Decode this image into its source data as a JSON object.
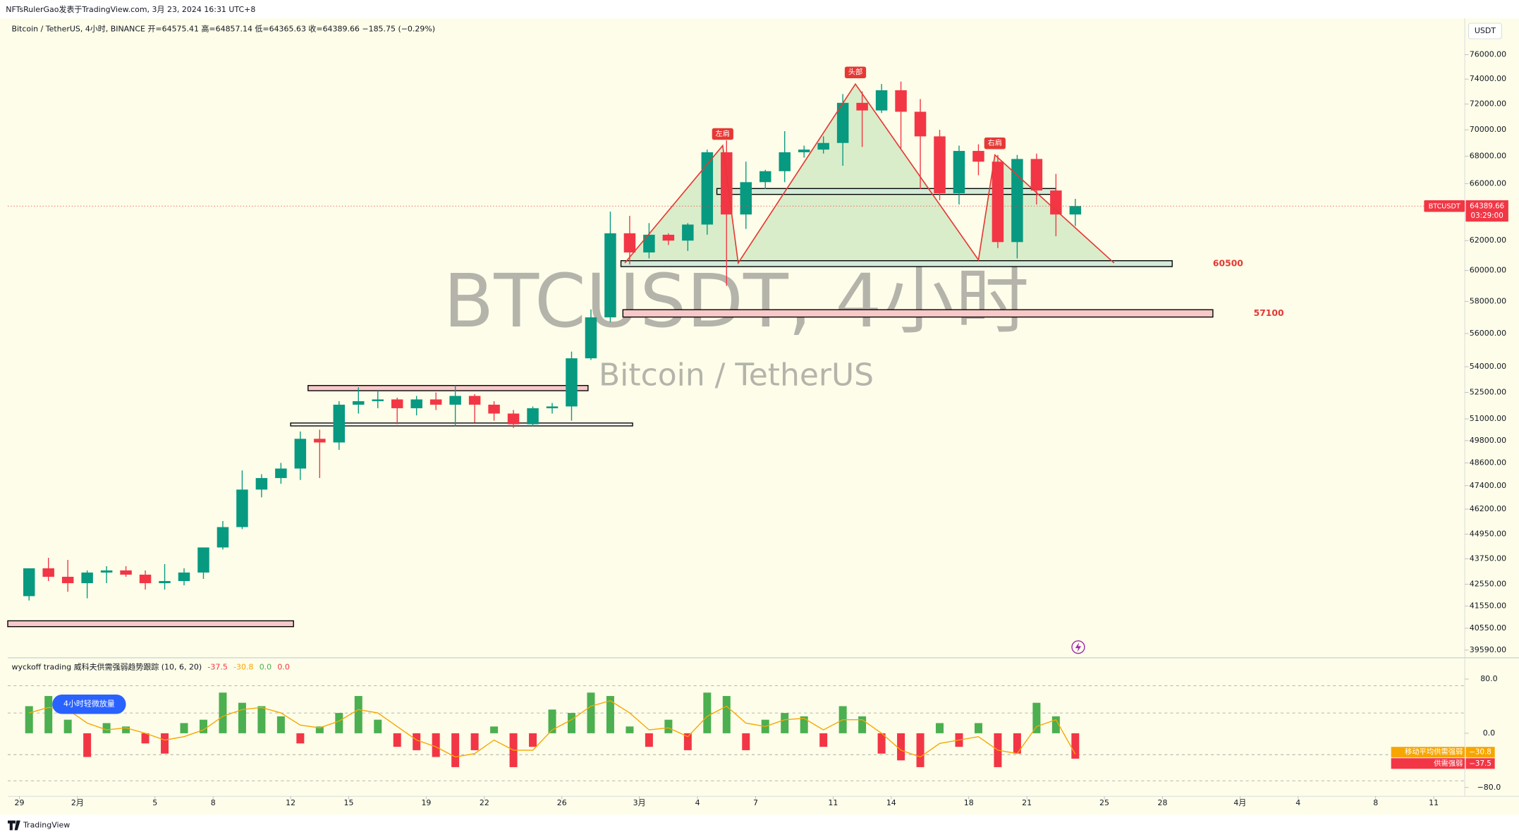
{
  "header": {
    "author_line": "NFTsRulerGao发表于TradingView.com, 3月 23, 2024 16:31 UTC+8"
  },
  "footer": {
    "brand": "TradingView"
  },
  "chart_data": [
    {
      "type": "candlestick",
      "title": "Bitcoin / TetherUS, 4小时, BINANCE  开=64575.41  高=64857.14  低=64365.63  收=64389.66  −185.75 (−0.29%)",
      "watermark": "BTCUSDT, 4小时",
      "watermark_subtitle": "Bitcoin / TetherUS",
      "currency": "USDT",
      "up_color": "#089981",
      "down_color": "#f23645",
      "ohlc": [
        [
          42000,
          43300,
          41800,
          43300
        ],
        [
          43300,
          43800,
          42700,
          42900
        ],
        [
          42900,
          43700,
          42200,
          42600
        ],
        [
          42600,
          43200,
          41900,
          43100
        ],
        [
          43100,
          43400,
          42600,
          43200
        ],
        [
          43200,
          43400,
          42900,
          43000
        ],
        [
          43000,
          43200,
          42300,
          42600
        ],
        [
          42600,
          43500,
          42300,
          42700
        ],
        [
          42700,
          43300,
          42500,
          43100
        ],
        [
          43100,
          44300,
          42800,
          44300
        ],
        [
          44300,
          45600,
          44200,
          45300
        ],
        [
          45300,
          48200,
          45200,
          47200
        ],
        [
          47200,
          48000,
          46800,
          47800
        ],
        [
          47800,
          48600,
          47500,
          48300
        ],
        [
          48300,
          50300,
          47700,
          49900
        ],
        [
          49900,
          50400,
          47800,
          49700
        ],
        [
          49700,
          52000,
          49300,
          51800
        ],
        [
          51800,
          52800,
          51300,
          52000
        ],
        [
          52000,
          52600,
          51600,
          52100
        ],
        [
          52100,
          52200,
          50700,
          51600
        ],
        [
          51600,
          52300,
          51200,
          52100
        ],
        [
          52100,
          52500,
          51500,
          51800
        ],
        [
          51800,
          52900,
          50600,
          52300
        ],
        [
          52300,
          52400,
          50800,
          51800
        ],
        [
          51800,
          52000,
          50900,
          51300
        ],
        [
          51300,
          51500,
          50500,
          50700
        ],
        [
          50700,
          51700,
          50600,
          51600
        ],
        [
          51600,
          51900,
          51300,
          51700
        ],
        [
          51700,
          54900,
          50900,
          54500
        ],
        [
          54500,
          57500,
          54400,
          57000
        ],
        [
          57000,
          64000,
          56700,
          62500
        ],
        [
          62500,
          63700,
          60400,
          61200
        ],
        [
          61200,
          63200,
          60800,
          62400
        ],
        [
          62400,
          62500,
          61700,
          62000
        ],
        [
          62000,
          63200,
          61300,
          63100
        ],
        [
          63100,
          68500,
          62400,
          68300
        ],
        [
          68300,
          69200,
          59000,
          63800
        ],
        [
          63800,
          67600,
          62800,
          66100
        ],
        [
          66100,
          67000,
          65600,
          66900
        ],
        [
          66900,
          69900,
          66100,
          68300
        ],
        [
          68300,
          68800,
          67900,
          68500
        ],
        [
          68500,
          69500,
          68200,
          69000
        ],
        [
          69000,
          72800,
          67300,
          72100
        ],
        [
          72100,
          73000,
          68700,
          71500
        ],
        [
          71500,
          73600,
          71300,
          73100
        ],
        [
          73100,
          73800,
          68600,
          71400
        ],
        [
          71400,
          72400,
          65600,
          69500
        ],
        [
          69500,
          70000,
          64800,
          65300
        ],
        [
          65300,
          68800,
          64500,
          68400
        ],
        [
          68400,
          68900,
          66600,
          67600
        ],
        [
          67600,
          68100,
          61500,
          61900
        ],
        [
          61900,
          68100,
          60800,
          67800
        ],
        [
          67800,
          68200,
          64500,
          65500
        ],
        [
          65500,
          66700,
          62300,
          63800
        ],
        [
          63800,
          64900,
          63000,
          64390
        ]
      ],
      "xlim": [
        -0.6,
        74.5
      ],
      "xticks": [
        {
          "value": 0,
          "label": "29"
        },
        {
          "value": 3,
          "label": "2月"
        },
        {
          "value": 7,
          "label": "5"
        },
        {
          "value": 10,
          "label": "8"
        },
        {
          "value": 14,
          "label": "12"
        },
        {
          "value": 17,
          "label": "15"
        },
        {
          "value": 21,
          "label": "19"
        },
        {
          "value": 24,
          "label": "22"
        },
        {
          "value": 28,
          "label": "26"
        },
        {
          "value": 32,
          "label": "3月"
        },
        {
          "value": 35,
          "label": "4"
        },
        {
          "value": 38,
          "label": "7"
        },
        {
          "value": 42,
          "label": "11"
        },
        {
          "value": 45,
          "label": "14"
        },
        {
          "value": 49,
          "label": "18"
        },
        {
          "value": 52,
          "label": "21"
        },
        {
          "value": 56,
          "label": "25"
        },
        {
          "value": 59,
          "label": "28"
        },
        {
          "value": 63,
          "label": "4月"
        },
        {
          "value": 66,
          "label": "4"
        },
        {
          "value": 70,
          "label": "8"
        },
        {
          "value": 73,
          "label": "11"
        }
      ],
      "ylim": [
        39300,
        79000
      ],
      "yscale": "log",
      "yticks": [
        {
          "value": 76000,
          "label": "76000.00"
        },
        {
          "value": 74000,
          "label": "74000.00"
        },
        {
          "value": 72000,
          "label": "72000.00"
        },
        {
          "value": 70000,
          "label": "70000.00"
        },
        {
          "value": 68000,
          "label": "68000.00"
        },
        {
          "value": 66000,
          "label": "66000.00"
        },
        {
          "value": 62000,
          "label": "62000.00"
        },
        {
          "value": 60000,
          "label": "60000.00"
        },
        {
          "value": 58000,
          "label": "58000.00"
        },
        {
          "value": 56000,
          "label": "56000.00"
        },
        {
          "value": 54000,
          "label": "54000.00"
        },
        {
          "value": 52500,
          "label": "52500.00"
        },
        {
          "value": 51000,
          "label": "51000.00"
        },
        {
          "value": 49800,
          "label": "49800.00"
        },
        {
          "value": 48600,
          "label": "48600.00"
        },
        {
          "value": 47400,
          "label": "47400.00"
        },
        {
          "value": 46200,
          "label": "46200.00"
        },
        {
          "value": 44950,
          "label": "44950.00"
        },
        {
          "value": 43750,
          "label": "43750.00"
        },
        {
          "value": 42550,
          "label": "42550.00"
        },
        {
          "value": 41550,
          "label": "41550.00"
        },
        {
          "value": 40550,
          "label": "40550.00"
        },
        {
          "value": 39590,
          "label": "39590.00"
        }
      ],
      "last_price": 64389.66,
      "symbol_tag": "BTCUSDT",
      "countdown": "03:29:00",
      "zones": [
        {
          "x": [
            14.9,
            29.35
          ],
          "y": [
            52600,
            52900
          ],
          "color": "#f8c9c9"
        },
        {
          "x": [
            14,
            31.65
          ],
          "y": [
            50610,
            50770
          ],
          "color": "#ffffff"
        },
        {
          "x": [
            -0.6,
            14.15
          ],
          "y": [
            40620,
            40880
          ],
          "color": "#f8c9c9"
        },
        {
          "x": [
            36,
            53.5
          ],
          "y": [
            65220,
            65640
          ],
          "color": "#d3ecd9"
        },
        {
          "x": [
            31.05,
            59.5
          ],
          "y": [
            60260,
            60650
          ],
          "color": "#d3ecd9",
          "label": "60500"
        },
        {
          "x": [
            31.15,
            61.6
          ],
          "y": [
            57020,
            57480
          ],
          "color": "#f8c9c9",
          "label": "57100"
        }
      ],
      "pattern": {
        "x": [
          31.25,
          36.3,
          37.1,
          43.15,
          49.5,
          50.35,
          56.5
        ],
        "y": [
          60500,
          68800,
          60500,
          73600,
          60700,
          68100,
          60500
        ],
        "vertex_labels": [
          null,
          "左肩",
          null,
          "头部",
          null,
          "右肩",
          null
        ],
        "color": "#e53935",
        "fill": "#4caf50"
      }
    },
    {
      "type": "bar",
      "title": "wyckoff trading 威科夫供需强弱趋势跟踪 (10, 6, 20)",
      "legend_values": [
        {
          "label": "-37.5",
          "color": "#f23645"
        },
        {
          "label": "-30.8",
          "color": "#f7a600"
        },
        {
          "label": "0.0",
          "color": "#4caf50"
        },
        {
          "label": "0.0",
          "color": "#f23645"
        }
      ],
      "annotation": "4小时轻微放量",
      "ylim": [
        -93,
        110
      ],
      "yticks": [
        {
          "value": 80,
          "label": "80.0"
        },
        {
          "value": 0,
          "label": "0.0"
        },
        {
          "value": -80,
          "label": "−80.0"
        }
      ],
      "series": [
        {
          "name": "供需强弱",
          "color": "#f23645",
          "up_color": "#4caf50",
          "tag": "−37.5",
          "values": [
            40,
            55,
            20,
            -35,
            15,
            10,
            -15,
            -30,
            15,
            20,
            60,
            45,
            40,
            25,
            -15,
            10,
            30,
            55,
            20,
            -20,
            -25,
            -35,
            -50,
            -25,
            10,
            -50,
            -20,
            35,
            30,
            60,
            55,
            10,
            -20,
            20,
            -25,
            60,
            55,
            -25,
            20,
            30,
            25,
            -20,
            40,
            25,
            -30,
            -40,
            -50,
            15,
            -20,
            15,
            -50,
            -30,
            45,
            25,
            -37.5
          ]
        },
        {
          "name": "移动平均供需强弱",
          "color": "#f7a600",
          "tag": "−30.8",
          "values": [
            30,
            38,
            35,
            15,
            5,
            8,
            0,
            -10,
            -5,
            5,
            25,
            35,
            38,
            30,
            12,
            8,
            18,
            35,
            30,
            10,
            -10,
            -20,
            -35,
            -30,
            -10,
            -25,
            -25,
            5,
            20,
            40,
            48,
            30,
            5,
            8,
            -5,
            25,
            40,
            15,
            10,
            20,
            22,
            5,
            20,
            20,
            0,
            -25,
            -35,
            -15,
            -10,
            -5,
            -25,
            -30,
            10,
            20,
            -30.8
          ]
        }
      ]
    }
  ]
}
